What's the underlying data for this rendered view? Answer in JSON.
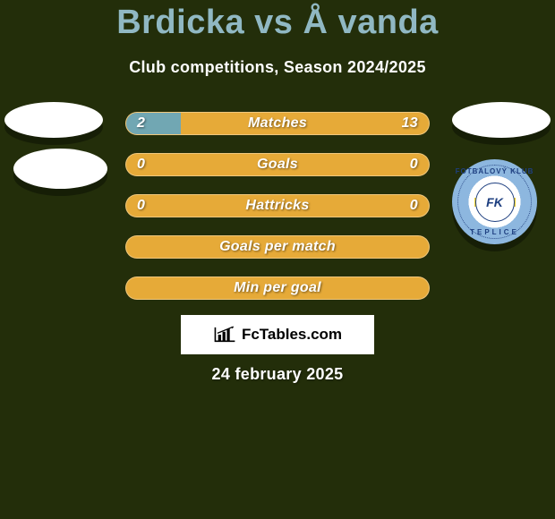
{
  "title": "Brdicka vs Å vanda",
  "subtitle": "Club competitions, Season 2024/2025",
  "date": "24 february 2025",
  "colors": {
    "background": "#232e0a",
    "title": "#90b8c3",
    "bar_bg": "#e6aa38",
    "bar_fill": "#71a7b3",
    "text": "#ffffff"
  },
  "brand": {
    "text": "FcTables.com"
  },
  "club_right": {
    "top_text": "FOTBALOVÝ KLUB",
    "bottom_text": "TEPLICE",
    "mono": "FK"
  },
  "bars": [
    {
      "label": "Matches",
      "left": "2",
      "right": "13",
      "fill_pct": 18
    },
    {
      "label": "Goals",
      "left": "0",
      "right": "0",
      "fill_pct": 0
    },
    {
      "label": "Hattricks",
      "left": "0",
      "right": "0",
      "fill_pct": 0
    },
    {
      "label": "Goals per match",
      "left": "",
      "right": "",
      "fill_pct": 0
    },
    {
      "label": "Min per goal",
      "left": "",
      "right": "",
      "fill_pct": 0
    }
  ]
}
